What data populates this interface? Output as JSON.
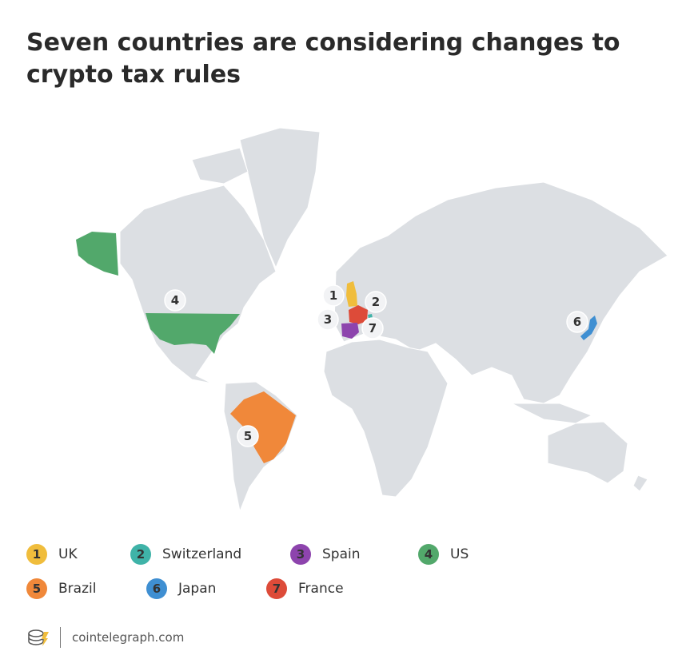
{
  "header": {
    "title": "Seven countries are considering changes to crypto tax rules"
  },
  "legend": {
    "items": [
      {
        "number": "1",
        "label": "UK",
        "color": "#f0bd3c"
      },
      {
        "number": "2",
        "label": "Switzerland",
        "color": "#3fb3a8"
      },
      {
        "number": "3",
        "label": "Spain",
        "color": "#8d44ad"
      },
      {
        "number": "4",
        "label": "US",
        "color": "#52a86b"
      },
      {
        "number": "5",
        "label": "Brazil",
        "color": "#f0883a"
      },
      {
        "number": "6",
        "label": "Japan",
        "color": "#3f8fd2"
      },
      {
        "number": "7",
        "label": "France",
        "color": "#dd4b39"
      }
    ]
  },
  "footer": {
    "source": "cointelegraph.com"
  }
}
